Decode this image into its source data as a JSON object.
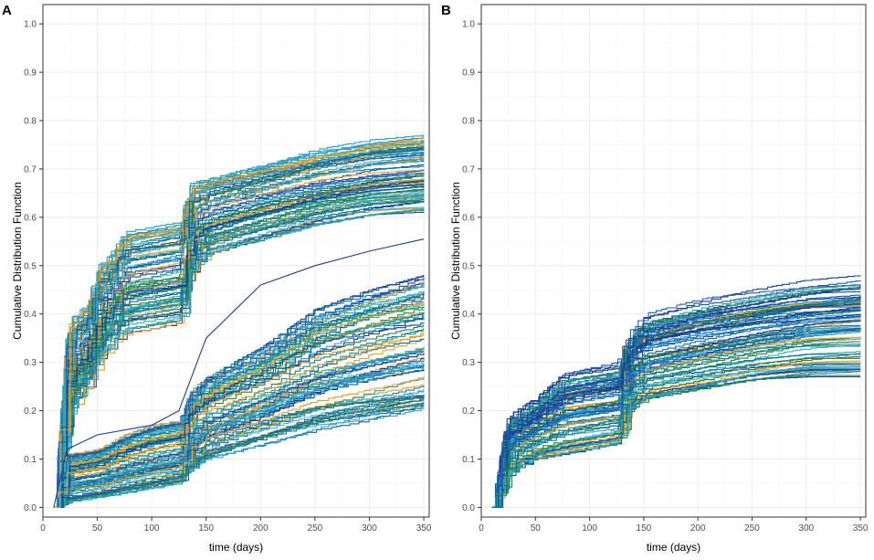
{
  "chart_data": [
    {
      "panel": "A",
      "type": "line",
      "description": "step-like empirical cumulative distribution curves, two groups of runs",
      "xlabel": "time (days)",
      "ylabel": "Cumulative Distribution Function",
      "xlim": [
        0,
        355
      ],
      "ylim": [
        -0.02,
        1.04
      ],
      "xticks": [
        0,
        50,
        100,
        150,
        200,
        250,
        300,
        350
      ],
      "yticks": [
        0.0,
        0.1,
        0.2,
        0.3,
        0.4,
        0.5,
        0.6,
        0.7,
        0.8,
        0.9,
        1.0
      ],
      "grid": true,
      "colors": [
        "#1f5aa8",
        "#1b3f8f",
        "#2a9bd1",
        "#3aa6b9",
        "#1e8f6e",
        "#2aa198",
        "#e69b2f",
        "#f0a030",
        "#0f7fa6",
        "#4bb3d6",
        "#2e7d32",
        "#17699b"
      ],
      "groups": [
        {
          "name": "upper group",
          "n_curves": 80,
          "start": [
            10,
            0.0
          ],
          "band_low": [
            [
              10,
              0.0
            ],
            [
              22,
              0.18
            ],
            [
              25,
              0.2
            ],
            [
              40,
              0.25
            ],
            [
              50,
              0.3
            ],
            [
              60,
              0.33
            ],
            [
              75,
              0.36
            ],
            [
              100,
              0.37
            ],
            [
              125,
              0.38
            ],
            [
              135,
              0.48
            ],
            [
              150,
              0.52
            ],
            [
              200,
              0.55
            ],
            [
              250,
              0.58
            ],
            [
              300,
              0.6
            ],
            [
              350,
              0.61
            ]
          ],
          "band_high": [
            [
              10,
              0.0
            ],
            [
              22,
              0.38
            ],
            [
              25,
              0.39
            ],
            [
              40,
              0.42
            ],
            [
              50,
              0.5
            ],
            [
              60,
              0.52
            ],
            [
              75,
              0.57
            ],
            [
              100,
              0.58
            ],
            [
              125,
              0.59
            ],
            [
              135,
              0.67
            ],
            [
              150,
              0.68
            ],
            [
              200,
              0.71
            ],
            [
              250,
              0.74
            ],
            [
              300,
              0.76
            ],
            [
              350,
              0.77
            ]
          ]
        },
        {
          "name": "lower group",
          "n_curves": 80,
          "start": [
            10,
            0.0
          ],
          "band_low": [
            [
              10,
              0.0
            ],
            [
              22,
              0.01
            ],
            [
              50,
              0.02
            ],
            [
              75,
              0.03
            ],
            [
              100,
              0.04
            ],
            [
              125,
              0.05
            ],
            [
              135,
              0.08
            ],
            [
              150,
              0.1
            ],
            [
              200,
              0.13
            ],
            [
              250,
              0.16
            ],
            [
              300,
              0.18
            ],
            [
              350,
              0.2
            ]
          ],
          "band_high": [
            [
              10,
              0.0
            ],
            [
              22,
              0.11
            ],
            [
              50,
              0.12
            ],
            [
              75,
              0.15
            ],
            [
              100,
              0.17
            ],
            [
              125,
              0.18
            ],
            [
              135,
              0.24
            ],
            [
              150,
              0.27
            ],
            [
              200,
              0.33
            ],
            [
              250,
              0.41
            ],
            [
              300,
              0.45
            ],
            [
              350,
              0.48
            ]
          ],
          "outlier_curve": [
            [
              10,
              0.0
            ],
            [
              22,
              0.12
            ],
            [
              50,
              0.15
            ],
            [
              75,
              0.16
            ],
            [
              100,
              0.17
            ],
            [
              125,
              0.2
            ],
            [
              150,
              0.35
            ],
            [
              200,
              0.46
            ],
            [
              250,
              0.5
            ],
            [
              300,
              0.53
            ],
            [
              350,
              0.555
            ]
          ]
        }
      ]
    },
    {
      "panel": "B",
      "type": "line",
      "description": "step-like empirical cumulative distribution curves, single group of runs",
      "xlabel": "time (days)",
      "ylabel": "Cumulative Distribution Function",
      "xlim": [
        0,
        355
      ],
      "ylim": [
        -0.02,
        1.04
      ],
      "xticks": [
        0,
        50,
        100,
        150,
        200,
        250,
        300,
        350
      ],
      "yticks": [
        0.0,
        0.1,
        0.2,
        0.3,
        0.4,
        0.5,
        0.6,
        0.7,
        0.8,
        0.9,
        1.0
      ],
      "grid": true,
      "colors": [
        "#1f5aa8",
        "#1b3f8f",
        "#2a9bd1",
        "#3aa6b9",
        "#1e8f6e",
        "#2aa198",
        "#e69b2f",
        "#f0a030",
        "#0f7fa6",
        "#4bb3d6",
        "#2e7d32",
        "#17699b"
      ],
      "groups": [
        {
          "name": "single group",
          "n_curves": 90,
          "start": [
            10,
            0.0
          ],
          "band_low": [
            [
              10,
              0.0
            ],
            [
              22,
              0.06
            ],
            [
              30,
              0.08
            ],
            [
              50,
              0.1
            ],
            [
              75,
              0.11
            ],
            [
              100,
              0.12
            ],
            [
              125,
              0.13
            ],
            [
              135,
              0.2
            ],
            [
              150,
              0.22
            ],
            [
              200,
              0.24
            ],
            [
              250,
              0.26
            ],
            [
              300,
              0.27
            ],
            [
              350,
              0.27
            ]
          ],
          "band_high": [
            [
              10,
              0.0
            ],
            [
              22,
              0.18
            ],
            [
              30,
              0.2
            ],
            [
              50,
              0.23
            ],
            [
              75,
              0.28
            ],
            [
              100,
              0.29
            ],
            [
              125,
              0.3
            ],
            [
              135,
              0.36
            ],
            [
              150,
              0.4
            ],
            [
              200,
              0.43
            ],
            [
              250,
              0.45
            ],
            [
              300,
              0.47
            ],
            [
              350,
              0.48
            ]
          ]
        }
      ]
    }
  ]
}
